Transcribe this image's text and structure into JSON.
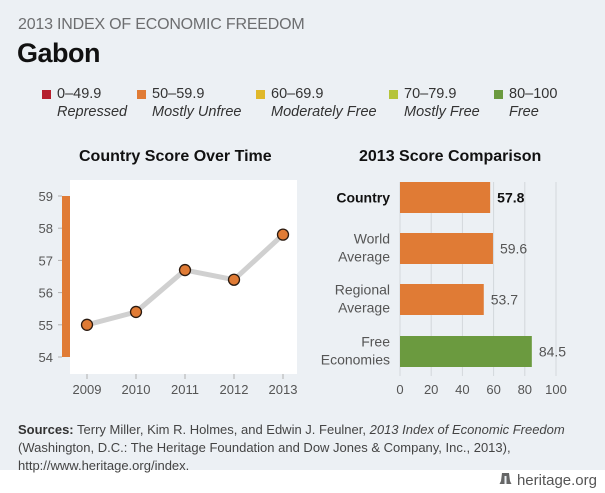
{
  "header": {
    "supertitle": "2013 INDEX OF ECONOMIC FREEDOM",
    "country": "Gabon"
  },
  "legend": [
    {
      "range": "0–49.9",
      "label": "Repressed",
      "color": "#b5202e"
    },
    {
      "range": "50–59.9",
      "label": "Mostly Unfree",
      "color": "#e07b35"
    },
    {
      "range": "60–69.9",
      "label": "Moderately Free",
      "color": "#e0b82a"
    },
    {
      "range": "70–79.9",
      "label": "Mostly Free",
      "color": "#b5c43a"
    },
    {
      "range": "80–100",
      "label": "Free",
      "color": "#6b9a3f"
    }
  ],
  "chart_data": [
    {
      "type": "line",
      "title": "Country Score Over Time",
      "x": [
        "2009",
        "2010",
        "2011",
        "2012",
        "2013"
      ],
      "values": [
        55.0,
        55.4,
        56.7,
        56.4,
        57.8
      ],
      "ylim": [
        54,
        59
      ],
      "yticks": [
        "54",
        "55",
        "56",
        "57",
        "58",
        "59"
      ],
      "xlabel": "",
      "ylabel": "",
      "grid": false,
      "band_color": "#e07b35",
      "line_color": "#d0d0d0",
      "marker_color": "#e07b35"
    },
    {
      "type": "bar",
      "orientation": "horizontal",
      "title": "2013 Score Comparison",
      "categories": [
        "Country",
        "World Average",
        "Regional Average",
        "Free Economies"
      ],
      "category_lines": [
        [
          "Country"
        ],
        [
          "World",
          "Average"
        ],
        [
          "Regional",
          "Average"
        ],
        [
          "Free",
          "Economies"
        ]
      ],
      "values": [
        57.8,
        59.6,
        53.7,
        84.5
      ],
      "value_labels": [
        "57.8",
        "59.6",
        "53.7",
        "84.5"
      ],
      "colors": [
        "#e07b35",
        "#e07b35",
        "#e07b35",
        "#6b9a3f"
      ],
      "highlight_index": 0,
      "xlim": [
        0,
        100
      ],
      "xticks": [
        "0",
        "20",
        "40",
        "60",
        "80",
        "100"
      ],
      "grid": true
    }
  ],
  "sources": {
    "label": "Sources:",
    "text_before": " Terry Miller, Kim R. Holmes, and Edwin J. Feulner, ",
    "title_italic": "2013 Index of Economic Freedom",
    "text_after": " (Washington, D.C.: The Heritage Foundation and Dow Jones & Company, Inc., 2013), http://www.heritage.org/index."
  },
  "footer": {
    "logo_icon": "liberty-bell-icon",
    "site": "heritage.org"
  }
}
